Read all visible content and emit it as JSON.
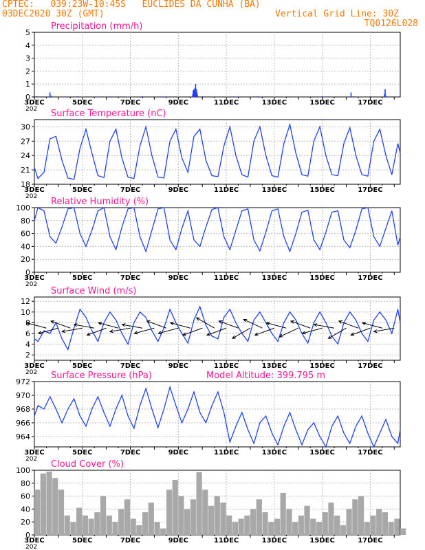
{
  "header": {
    "line1": "CPTEC:   039:23W-10:45S   EUCLIDES DA CUNHA (BA)",
    "line2_left": "03DEC2020 30Z (GMT)",
    "line2_right": "Vertical Grid Line: 30Z",
    "line3_right": "TQ0126L028"
  },
  "x_tick_labels": [
    "3DEC",
    "5DEC",
    "7DEC",
    "9DEC",
    "11DEC",
    "13DEC",
    "15DEC",
    "17DEC"
  ],
  "year_label": "202",
  "colors": {
    "header": "#ff7700",
    "title": "#ff1493",
    "series": "#1f3fff",
    "wind_arrow": "#000000",
    "cloud": "#a8a8a8"
  },
  "chart_data": [
    {
      "id": "precip",
      "type": "bar",
      "title": "Precipitation (mm/h)",
      "x_range_days": [
        3,
        18.25
      ],
      "ylim": [
        0,
        5
      ],
      "yticks": [
        "0",
        "1",
        "2",
        "3",
        "4",
        "5"
      ],
      "x": [
        3.1,
        3.65,
        3.7,
        4.3,
        4.8,
        5.6,
        6.2,
        6.9,
        7.5,
        8.3,
        9.6,
        9.62,
        9.65,
        9.68,
        9.7,
        9.72,
        9.75,
        9.78,
        9.8,
        10.0,
        11.5,
        12.3,
        13.4,
        14.2,
        15.0,
        16.2,
        16.3,
        17.0,
        17.6,
        17.62,
        17.65
      ],
      "values": [
        0.05,
        0.35,
        0.1,
        0.04,
        0.05,
        0.03,
        0.04,
        0.03,
        0.05,
        0.04,
        0.2,
        0.5,
        0.6,
        0.5,
        0.7,
        1.0,
        0.6,
        0.35,
        0.15,
        0.05,
        0.04,
        0.05,
        0.03,
        0.04,
        0.05,
        0.35,
        0.05,
        0.04,
        0.25,
        0.6,
        0.1
      ]
    },
    {
      "id": "temp",
      "type": "line",
      "title": "Surface Temperature (nC)",
      "x_range_days": [
        3,
        18.25
      ],
      "ylim": [
        18,
        31.5
      ],
      "yticks": [
        "18",
        "21",
        "24",
        "27",
        "30"
      ],
      "x": [
        3.0,
        3.15,
        3.4,
        3.65,
        3.9,
        4.15,
        4.4,
        4.65,
        4.9,
        5.15,
        5.4,
        5.65,
        5.9,
        6.15,
        6.4,
        6.65,
        6.9,
        7.15,
        7.4,
        7.65,
        7.9,
        8.15,
        8.4,
        8.65,
        8.9,
        9.15,
        9.4,
        9.65,
        9.9,
        10.15,
        10.4,
        10.65,
        10.9,
        11.15,
        11.4,
        11.65,
        11.9,
        12.15,
        12.4,
        12.65,
        12.9,
        13.15,
        13.4,
        13.65,
        13.9,
        14.15,
        14.4,
        14.65,
        14.9,
        15.15,
        15.4,
        15.65,
        15.9,
        16.15,
        16.4,
        16.65,
        16.9,
        17.15,
        17.4,
        17.65,
        17.9,
        18.15,
        18.25
      ],
      "y": [
        21.5,
        19.2,
        20.5,
        27.5,
        28.0,
        23.0,
        19.3,
        19.0,
        25.5,
        29.5,
        24.5,
        19.8,
        19.4,
        27.0,
        29.5,
        23.5,
        19.5,
        19.2,
        26.0,
        30.0,
        24.0,
        19.5,
        19.3,
        27.0,
        29.5,
        23.5,
        20.5,
        28.0,
        29.5,
        23.0,
        19.8,
        19.6,
        26.0,
        30.0,
        24.0,
        20.0,
        19.5,
        27.0,
        30.0,
        24.0,
        19.8,
        19.5,
        26.5,
        30.5,
        24.5,
        20.0,
        19.7,
        27.0,
        30.0,
        24.0,
        20.0,
        19.8,
        26.5,
        29.8,
        24.0,
        20.0,
        19.7,
        27.0,
        29.5,
        24.0,
        20.0,
        26.5,
        24.5
      ]
    },
    {
      "id": "rh",
      "type": "line",
      "title": "Relative Humidity (%)",
      "x_range_days": [
        3,
        18.25
      ],
      "ylim": [
        0,
        100
      ],
      "yticks": [
        "0",
        "20",
        "40",
        "60",
        "80",
        "100"
      ],
      "x": [
        3.0,
        3.15,
        3.4,
        3.65,
        3.9,
        4.15,
        4.4,
        4.65,
        4.9,
        5.15,
        5.4,
        5.65,
        5.9,
        6.15,
        6.4,
        6.65,
        6.9,
        7.15,
        7.4,
        7.65,
        7.9,
        8.15,
        8.4,
        8.65,
        8.9,
        9.15,
        9.4,
        9.65,
        9.9,
        10.15,
        10.4,
        10.65,
        10.9,
        11.15,
        11.4,
        11.65,
        11.9,
        12.15,
        12.4,
        12.65,
        12.9,
        13.15,
        13.4,
        13.65,
        13.9,
        14.15,
        14.4,
        14.65,
        14.9,
        15.15,
        15.4,
        15.65,
        15.9,
        16.15,
        16.4,
        16.65,
        16.9,
        17.15,
        17.4,
        17.65,
        17.9,
        18.15,
        18.25
      ],
      "y": [
        80,
        100,
        95,
        55,
        45,
        70,
        98,
        100,
        60,
        40,
        65,
        95,
        100,
        55,
        35,
        70,
        98,
        100,
        55,
        32,
        65,
        98,
        100,
        50,
        35,
        68,
        95,
        50,
        40,
        70,
        97,
        100,
        55,
        35,
        65,
        95,
        98,
        50,
        33,
        62,
        95,
        98,
        55,
        32,
        60,
        93,
        96,
        50,
        35,
        62,
        93,
        95,
        50,
        38,
        65,
        98,
        100,
        55,
        40,
        68,
        95,
        42,
        55
      ]
    },
    {
      "id": "wind",
      "type": "line",
      "title": "Surface Wind (m/s)",
      "x_range_days": [
        3,
        18.25
      ],
      "ylim": [
        1,
        12.8
      ],
      "yticks": [
        "2",
        "4",
        "6",
        "8",
        "10",
        "12"
      ],
      "x": [
        3.0,
        3.15,
        3.4,
        3.65,
        3.9,
        4.15,
        4.4,
        4.65,
        4.9,
        5.15,
        5.4,
        5.65,
        5.9,
        6.15,
        6.4,
        6.65,
        6.9,
        7.15,
        7.4,
        7.65,
        7.9,
        8.15,
        8.4,
        8.65,
        8.9,
        9.15,
        9.4,
        9.65,
        9.9,
        10.15,
        10.4,
        10.65,
        10.9,
        11.15,
        11.4,
        11.65,
        11.9,
        12.15,
        12.4,
        12.65,
        12.9,
        13.15,
        13.4,
        13.65,
        13.9,
        14.15,
        14.4,
        14.65,
        14.9,
        15.15,
        15.4,
        15.65,
        15.9,
        16.15,
        16.4,
        16.65,
        16.9,
        17.15,
        17.4,
        17.65,
        17.9,
        18.15,
        18.25
      ],
      "y": [
        5.0,
        4.5,
        6.5,
        6.0,
        8.0,
        5.0,
        3.0,
        7.0,
        10.5,
        9.0,
        6.5,
        4.5,
        8.0,
        10.0,
        8.5,
        6.0,
        4.0,
        8.0,
        10.0,
        9.0,
        6.5,
        4.5,
        7.0,
        10.5,
        8.0,
        6.0,
        4.2,
        8.5,
        11.0,
        7.5,
        5.5,
        5.0,
        9.0,
        10.5,
        8.0,
        6.0,
        4.5,
        8.5,
        10.0,
        8.0,
        6.0,
        4.5,
        8.0,
        10.0,
        8.5,
        6.0,
        4.2,
        8.0,
        10.0,
        8.0,
        5.5,
        4.0,
        8.0,
        10.0,
        8.5,
        6.0,
        4.5,
        8.5,
        10.0,
        8.5,
        6.0,
        10.5,
        8.0
      ],
      "arrows": {
        "x": [
          3.5,
          4.0,
          4.5,
          5.0,
          5.5,
          6.0,
          6.5,
          7.0,
          7.5,
          8.0,
          8.5,
          9.0,
          9.5,
          10.0,
          10.5,
          11.0,
          11.5,
          12.0,
          12.5,
          13.0,
          13.5,
          14.0,
          14.5,
          15.0,
          15.5,
          16.0,
          16.5,
          17.0,
          17.5,
          18.0
        ],
        "dir_deg": [
          165,
          195,
          160,
          190,
          170,
          200,
          165,
          190,
          170,
          195,
          160,
          195,
          165,
          200,
          150,
          200,
          160,
          210,
          155,
          200,
          165,
          205,
          160,
          195,
          170,
          210,
          160,
          200,
          165,
          190
        ]
      }
    },
    {
      "id": "pressure",
      "type": "line",
      "title": "Surface Pressure (hPa)",
      "subtitle": "Model Altitude: 399.795 m",
      "x_range_days": [
        3,
        18.25
      ],
      "ylim": [
        962.5,
        972
      ],
      "yticks": [
        "964",
        "966",
        "968",
        "970",
        "972"
      ],
      "x": [
        3.0,
        3.15,
        3.4,
        3.65,
        3.9,
        4.15,
        4.4,
        4.65,
        4.9,
        5.15,
        5.4,
        5.65,
        5.9,
        6.15,
        6.4,
        6.65,
        6.9,
        7.15,
        7.4,
        7.65,
        7.9,
        8.15,
        8.4,
        8.65,
        8.9,
        9.15,
        9.4,
        9.65,
        9.9,
        10.15,
        10.4,
        10.65,
        10.9,
        11.15,
        11.4,
        11.65,
        11.9,
        12.15,
        12.4,
        12.65,
        12.9,
        13.15,
        13.4,
        13.65,
        13.9,
        14.15,
        14.4,
        14.65,
        14.9,
        15.15,
        15.4,
        15.65,
        15.9,
        16.15,
        16.4,
        16.65,
        16.9,
        17.15,
        17.4,
        17.65,
        17.9,
        18.15,
        18.25
      ],
      "y": [
        967.0,
        968.5,
        968.0,
        969.8,
        968.0,
        966.0,
        968.0,
        969.5,
        967.0,
        965.5,
        968.0,
        969.8,
        967.5,
        965.5,
        968.0,
        970.0,
        967.0,
        965.2,
        968.5,
        971.0,
        968.0,
        965.3,
        968.0,
        971.2,
        968.5,
        966.0,
        968.0,
        970.5,
        967.5,
        966.0,
        968.5,
        970.5,
        967.5,
        963.2,
        965.5,
        967.5,
        965.0,
        963.0,
        966.0,
        967.0,
        964.5,
        962.8,
        965.5,
        967.5,
        965.0,
        962.8,
        965.0,
        966.0,
        964.0,
        962.5,
        965.5,
        967.0,
        964.5,
        963.0,
        965.5,
        967.0,
        964.5,
        962.5,
        964.5,
        966.5,
        964.0,
        963.0,
        965.0
      ]
    },
    {
      "id": "cloud",
      "type": "bar",
      "title": "Cloud Cover (%)",
      "x_range_days": [
        3,
        18.25
      ],
      "ylim": [
        0,
        100
      ],
      "yticks": [
        "0",
        "20",
        "40",
        "60",
        "80",
        "100"
      ],
      "x": [
        3.0,
        3.25,
        3.5,
        3.75,
        4.0,
        4.25,
        4.5,
        4.75,
        5.0,
        5.25,
        5.5,
        5.75,
        6.0,
        6.25,
        6.5,
        6.75,
        7.0,
        7.25,
        7.5,
        7.75,
        8.0,
        8.25,
        8.5,
        8.75,
        9.0,
        9.25,
        9.5,
        9.75,
        10.0,
        10.25,
        10.5,
        10.75,
        11.0,
        11.25,
        11.5,
        11.75,
        12.0,
        12.25,
        12.5,
        12.75,
        13.0,
        13.25,
        13.5,
        13.75,
        14.0,
        14.25,
        14.5,
        14.75,
        15.0,
        15.25,
        15.5,
        15.75,
        16.0,
        16.25,
        16.5,
        16.75,
        17.0,
        17.25,
        17.5,
        17.75,
        18.0,
        18.25
      ],
      "values": [
        70,
        95,
        98,
        88,
        70,
        30,
        20,
        42,
        30,
        25,
        35,
        60,
        30,
        20,
        40,
        55,
        25,
        15,
        35,
        50,
        20,
        10,
        70,
        85,
        60,
        40,
        55,
        97,
        70,
        45,
        60,
        50,
        30,
        20,
        25,
        30,
        40,
        55,
        35,
        20,
        25,
        65,
        40,
        20,
        30,
        45,
        25,
        20,
        35,
        50,
        30,
        15,
        40,
        55,
        60,
        20,
        30,
        40,
        35,
        20,
        25,
        10
      ]
    }
  ]
}
